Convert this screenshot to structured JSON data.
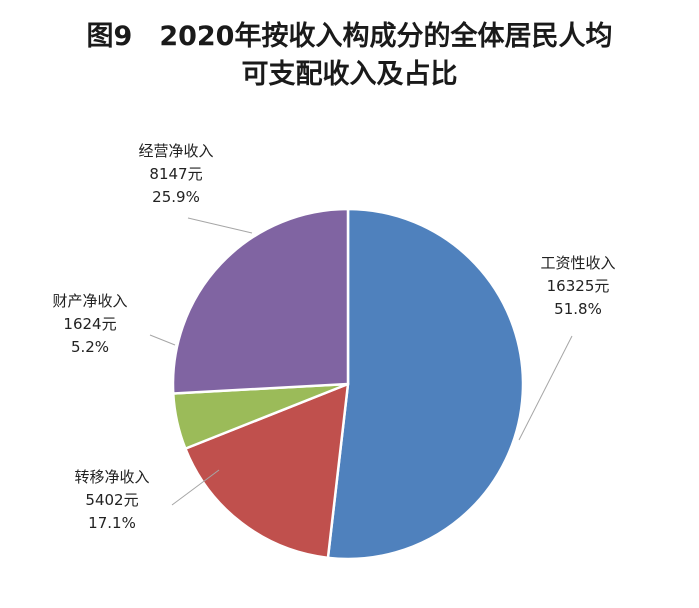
{
  "chart_data": {
    "type": "pie",
    "title_lines": [
      "图9　2020年按收入构成分的全体居民人均",
      "可支配收入及占比"
    ],
    "unit": "元",
    "start_angle_deg": 0,
    "direction": "clockwise",
    "slices": [
      {
        "name": "工资性收入",
        "value": 16325,
        "value_label": "16325元",
        "percent_label": "51.8%",
        "color": "#4F81BD"
      },
      {
        "name": "转移净收入",
        "value": 5402,
        "value_label": "5402元",
        "percent_label": "17.1%",
        "color": "#C0504D"
      },
      {
        "name": "财产净收入",
        "value": 1624,
        "value_label": "1624元",
        "percent_label": "5.2%",
        "color": "#9BBB59"
      },
      {
        "name": "经营净收入",
        "value": 8147,
        "value_label": "8147元",
        "percent_label": "25.9%",
        "color": "#8064A2"
      }
    ]
  }
}
